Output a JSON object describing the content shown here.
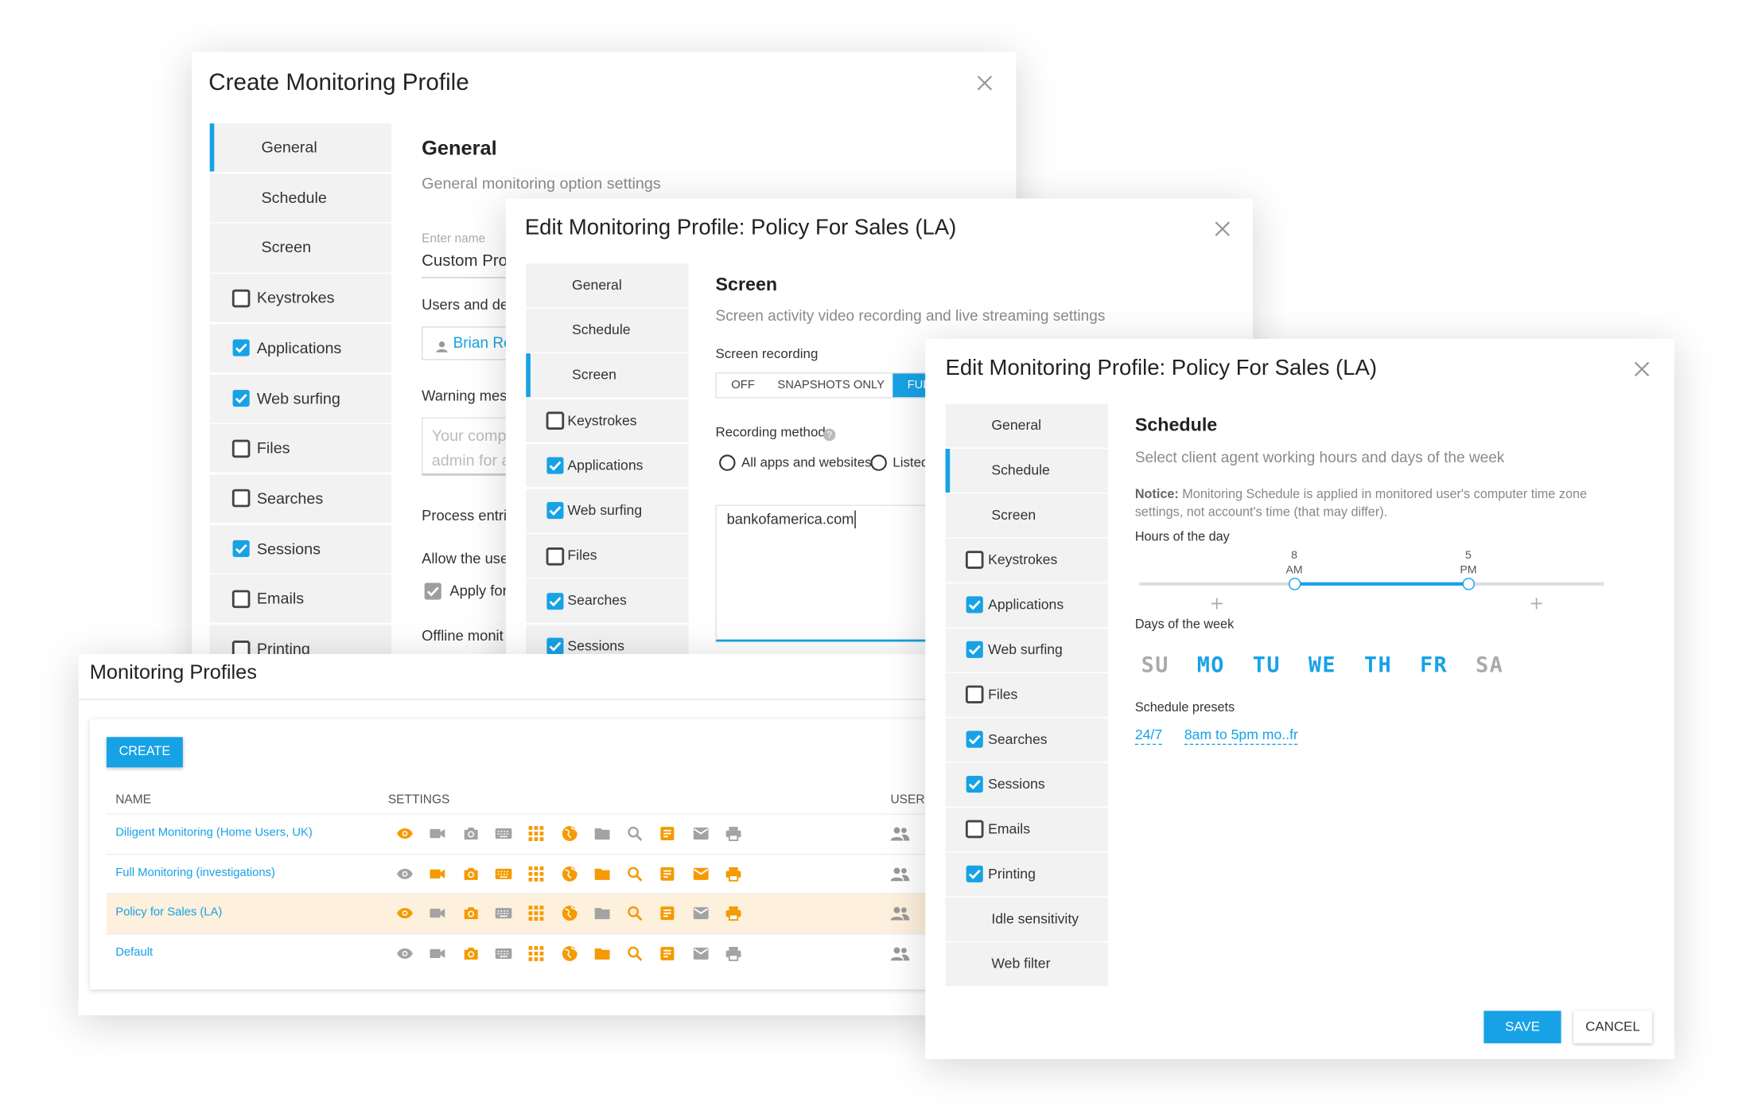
{
  "create_dialog": {
    "title": "Create Monitoring Profile",
    "nav": [
      {
        "label": "General",
        "active": true
      },
      {
        "label": "Schedule"
      },
      {
        "label": "Screen"
      },
      {
        "label": "Keystrokes",
        "checked": false
      },
      {
        "label": "Applications",
        "checked": true
      },
      {
        "label": "Web surfing",
        "checked": true
      },
      {
        "label": "Files",
        "checked": false
      },
      {
        "label": "Searches",
        "checked": false
      },
      {
        "label": "Sessions",
        "checked": true
      },
      {
        "label": "Emails",
        "checked": false
      },
      {
        "label": "Printing",
        "checked": false
      }
    ],
    "section_title": "General",
    "section_subtitle": "General monitoring option settings",
    "name_label": "Enter name",
    "name_value": "Custom Pro",
    "users_label": "Users and dep",
    "user_chip": "Brian Re",
    "warning_label": "Warning mess",
    "warning_text": [
      "Your comp",
      "admin for a"
    ],
    "process_label": "Process entri",
    "allow_label": "Allow the use",
    "apply_label": "Apply for",
    "offline_label": "Offline monit"
  },
  "screen_dialog": {
    "title": "Edit Monitoring Profile: Policy For Sales (LA)",
    "nav": [
      {
        "label": "General"
      },
      {
        "label": "Schedule"
      },
      {
        "label": "Screen",
        "active": true
      },
      {
        "label": "Keystrokes",
        "checked": false
      },
      {
        "label": "Applications",
        "checked": true
      },
      {
        "label": "Web surfing",
        "checked": true
      },
      {
        "label": "Files",
        "checked": false
      },
      {
        "label": "Searches",
        "checked": true
      },
      {
        "label": "Sessions",
        "checked": true
      }
    ],
    "section_title": "Screen",
    "section_subtitle": "Screen activity video recording and live streaming settings",
    "recording_label": "Screen recording",
    "recording_options": [
      {
        "label": "OFF"
      },
      {
        "label": "SNAPSHOTS ONLY"
      },
      {
        "label": "FUL",
        "selected": true
      }
    ],
    "method_label": "Recording method",
    "method_options": [
      "All apps and websites",
      "Listed"
    ],
    "url_list": "bankofamerica.com"
  },
  "profiles_panel": {
    "title": "Monitoring Profiles",
    "create_button": "CREATE",
    "columns": [
      "NAME",
      "SETTINGS",
      "USERS"
    ],
    "rows": [
      {
        "name": "Diligent Monitoring (Home Users, UK)",
        "settings": [
          true,
          false,
          false,
          false,
          true,
          true,
          false,
          false,
          true,
          false,
          false
        ]
      },
      {
        "name": "Full Monitoring (investigations)",
        "settings": [
          false,
          true,
          true,
          true,
          true,
          true,
          true,
          true,
          true,
          true,
          true
        ]
      },
      {
        "name": "Policy for Sales (LA)",
        "highlighted": true,
        "settings": [
          true,
          false,
          true,
          false,
          true,
          true,
          false,
          true,
          true,
          false,
          true
        ]
      },
      {
        "name": "Default",
        "settings": [
          false,
          false,
          true,
          false,
          true,
          true,
          true,
          true,
          true,
          false,
          false
        ]
      }
    ]
  },
  "schedule_dialog": {
    "title": "Edit Monitoring Profile: Policy For Sales (LA)",
    "nav": [
      {
        "label": "General"
      },
      {
        "label": "Schedule",
        "active": true
      },
      {
        "label": "Screen"
      },
      {
        "label": "Keystrokes",
        "checked": false
      },
      {
        "label": "Applications",
        "checked": true
      },
      {
        "label": "Web surfing",
        "checked": true
      },
      {
        "label": "Files",
        "checked": false
      },
      {
        "label": "Searches",
        "checked": true
      },
      {
        "label": "Sessions",
        "checked": true
      },
      {
        "label": "Emails",
        "checked": false
      },
      {
        "label": "Printing",
        "checked": true
      },
      {
        "label": "Idle sensitivity"
      },
      {
        "label": "Web filter"
      }
    ],
    "section_title": "Schedule",
    "section_subtitle": "Select client agent working hours and days of the week",
    "notice_label": "Notice:",
    "notice_text": "Monitoring Schedule is applied in monitored user's computer time zone settings, not account's time (that may differ).",
    "hours_label": "Hours of the day",
    "hours_range": [
      0,
      24
    ],
    "hours_handles": [
      {
        "value": 8,
        "label": "8",
        "period": "AM"
      },
      {
        "value": 17,
        "label": "5",
        "period": "PM"
      }
    ],
    "days_label": "Days of the week",
    "days": [
      {
        "label": "SU",
        "active": false
      },
      {
        "label": "MO",
        "active": true
      },
      {
        "label": "TU",
        "active": true
      },
      {
        "label": "WE",
        "active": true
      },
      {
        "label": "TH",
        "active": true
      },
      {
        "label": "FR",
        "active": true
      },
      {
        "label": "SA",
        "active": false
      }
    ],
    "presets_label": "Schedule presets",
    "presets": [
      "24/7",
      "8am to 5pm mo..fr"
    ],
    "save_button": "SAVE",
    "cancel_button": "CANCEL"
  }
}
